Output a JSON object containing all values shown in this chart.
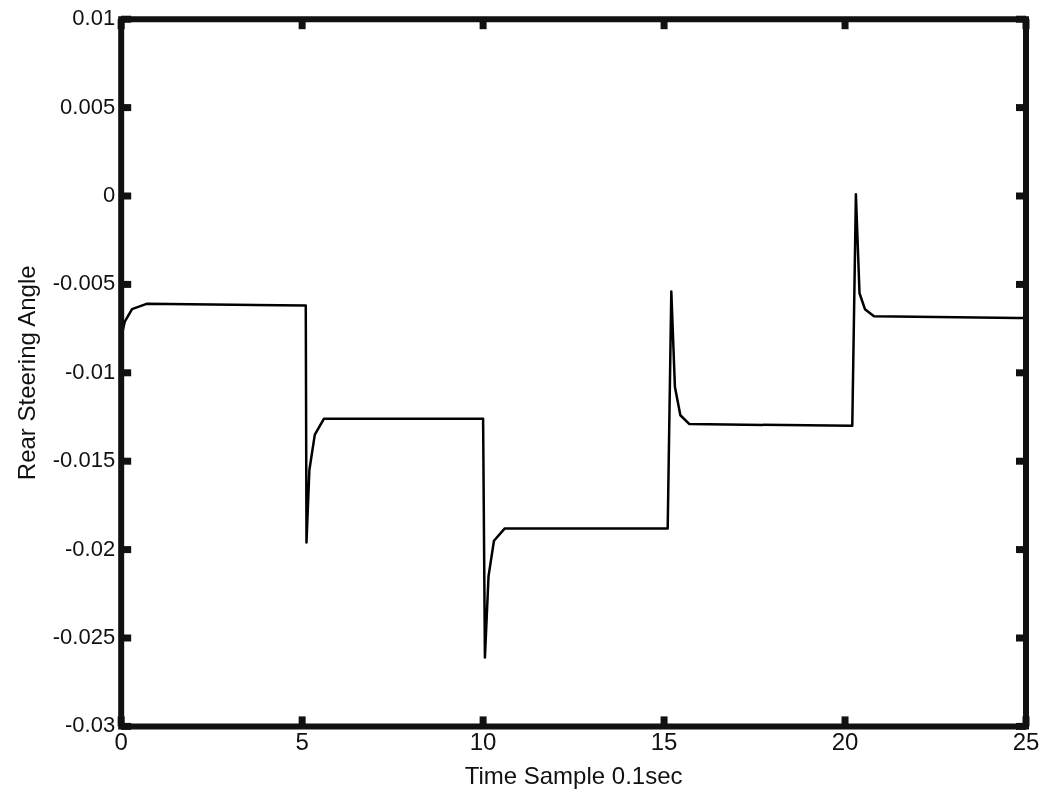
{
  "chart_data": {
    "type": "line",
    "xlabel": "Time Sample 0.1sec",
    "ylabel": "Rear Steering Angle",
    "xlim": [
      0,
      25
    ],
    "xticks": [
      0,
      5,
      10,
      15,
      20,
      25
    ],
    "ylim": [
      -0.03,
      0.01
    ],
    "yticks": [
      -0.03,
      -0.025,
      -0.02,
      -0.015,
      -0.01,
      -0.005,
      0,
      0.005,
      0.01
    ],
    "grid": false,
    "legend": false,
    "marker": "none",
    "line_style": "solid",
    "series": [
      {
        "color": "#000000",
        "x": [
          0,
          0.1,
          0.3,
          0.7,
          5.1,
          5.12,
          5.2,
          5.35,
          5.6,
          10.0,
          10.05,
          10.15,
          10.3,
          10.6,
          15.1,
          15.2,
          15.3,
          15.45,
          15.7,
          20.2,
          20.3,
          20.4,
          20.55,
          20.8,
          25
        ],
        "values": [
          -0.008,
          -0.0071,
          -0.0064,
          -0.0061,
          -0.0062,
          -0.0196,
          -0.0155,
          -0.0135,
          -0.0126,
          -0.0126,
          -0.0261,
          -0.0215,
          -0.0195,
          -0.0188,
          -0.0188,
          -0.0054,
          -0.0108,
          -0.0124,
          -0.0129,
          -0.013,
          0.0001,
          -0.0055,
          -0.0064,
          -0.0068,
          -0.0069
        ]
      }
    ]
  }
}
